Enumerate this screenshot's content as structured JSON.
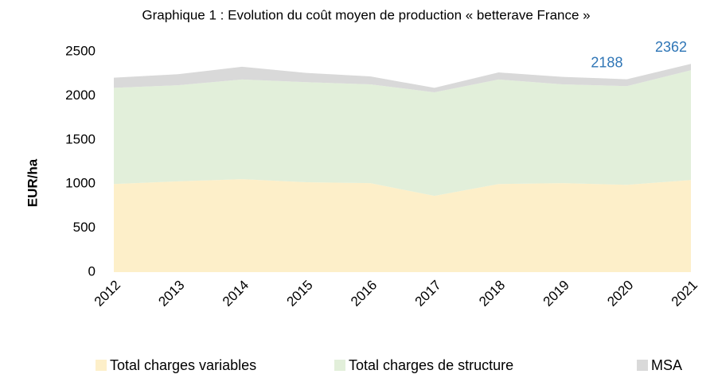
{
  "chart_data": {
    "type": "stacked_area",
    "title": "Graphique 1 : Evolution du coût moyen de production « betterave France »",
    "ylabel": "EUR/ha",
    "categories": [
      "2012",
      "2013",
      "2014",
      "2015",
      "2016",
      "2017",
      "2018",
      "2019",
      "2020",
      "2021"
    ],
    "series": [
      {
        "name": "Total charges variables",
        "color": "#fdefc9",
        "values": [
          1000,
          1030,
          1055,
          1020,
          1010,
          865,
          1000,
          1010,
          990,
          1045
        ]
      },
      {
        "name": "Total charges de structure",
        "color": "#e2efda",
        "values": [
          1090,
          1090,
          1130,
          1135,
          1120,
          1175,
          1185,
          1120,
          1120,
          1245
        ]
      },
      {
        "name": "MSA",
        "color": "#d9d9d9",
        "values": [
          115,
          125,
          145,
          105,
          90,
          50,
          80,
          85,
          78,
          72
        ]
      }
    ],
    "annotations": [
      {
        "x": "2020",
        "text": "2188"
      },
      {
        "x": "2021",
        "text": "2362"
      }
    ],
    "annotation_color": "#2e75b6",
    "ylim": [
      0,
      2500
    ],
    "yticks": [
      0,
      500,
      1000,
      1500,
      2000,
      2500
    ],
    "grid": false,
    "legend": "bottom"
  }
}
